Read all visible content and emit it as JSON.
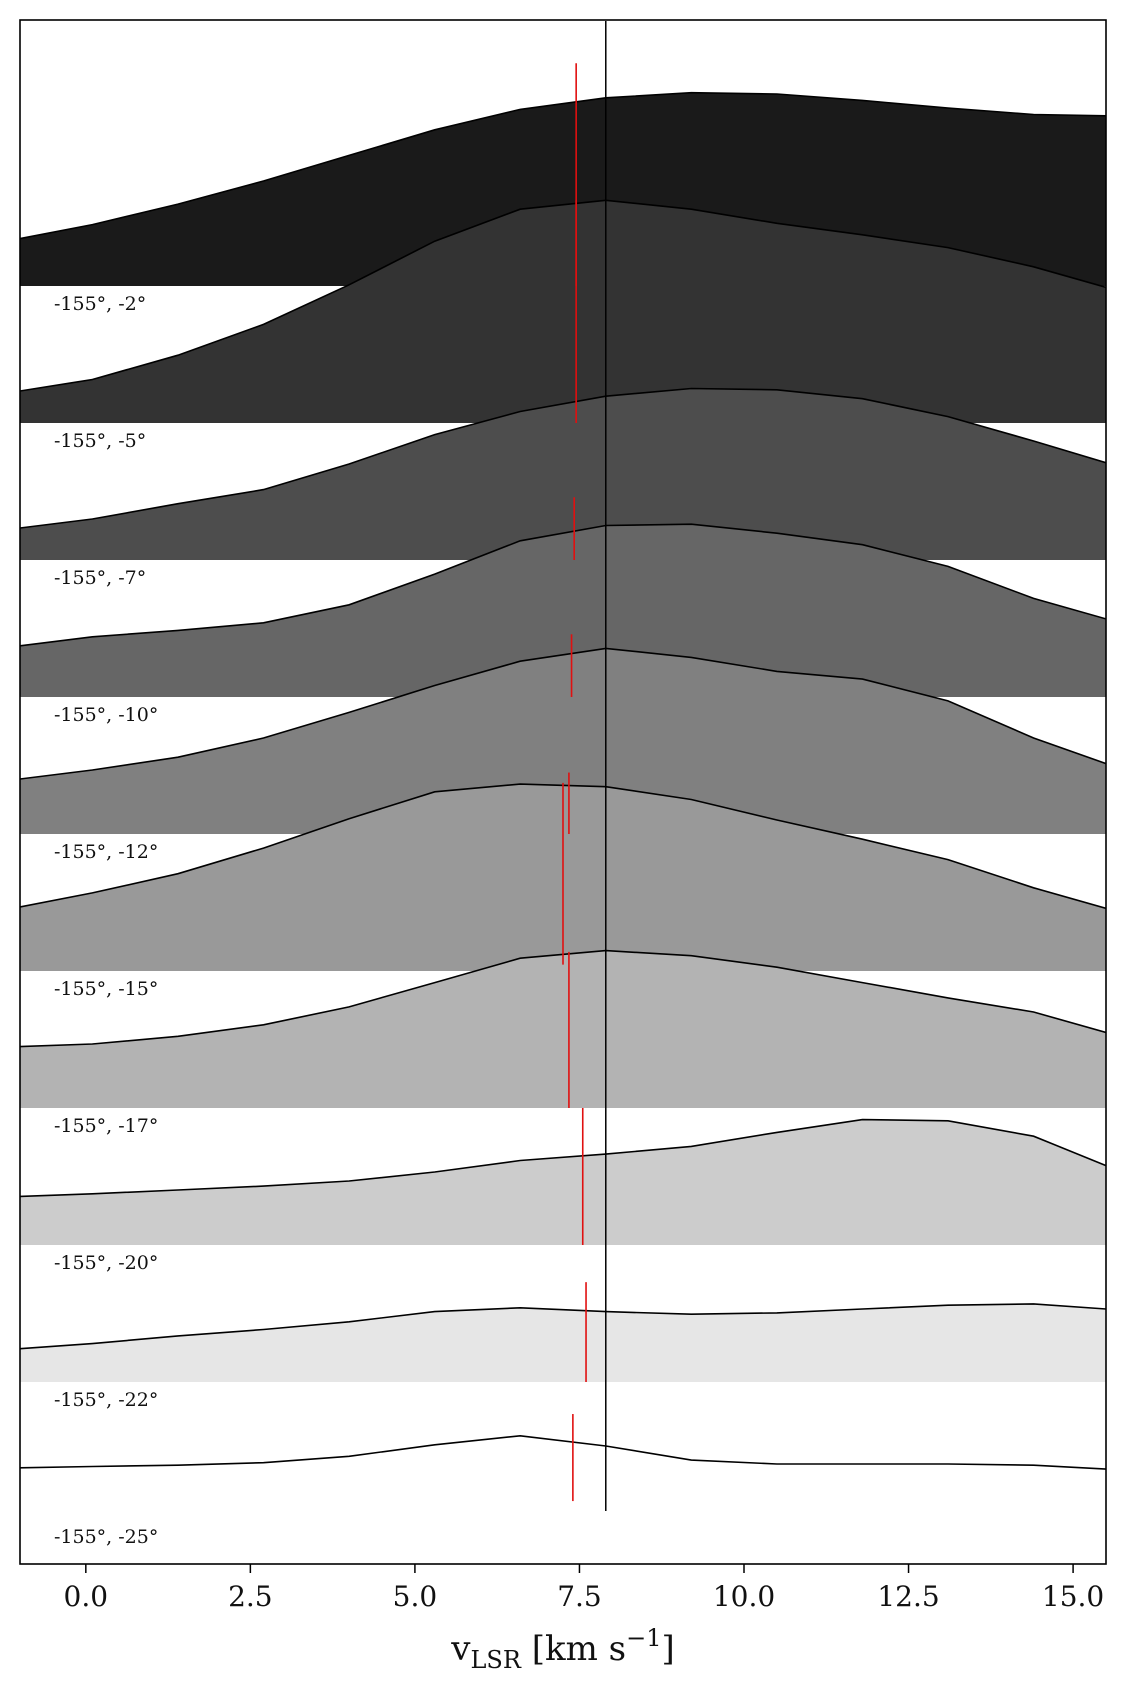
{
  "chart_data": {
    "type": "area",
    "xlabel": "v_LSR [km s^-1]",
    "xlabel_parts": {
      "main": "v",
      "sub": "LSR",
      "rest": " [km s",
      "sup": "−1",
      "end": "]"
    },
    "xlim": [
      -1.0,
      15.5
    ],
    "xticks": [
      0.0,
      2.5,
      5.0,
      7.5,
      10.0,
      12.5,
      15.0
    ],
    "xtick_labels": [
      "0.0",
      "2.5",
      "5.0",
      "7.5",
      "10.0",
      "12.5",
      "15.0"
    ],
    "grid": false,
    "reference_line_x": 7.9,
    "reference_line_color": "#000000",
    "marker_color": "#e01010",
    "x": [
      -1.0,
      0.1,
      1.4,
      2.7,
      4.0,
      5.3,
      6.6,
      7.9,
      9.2,
      10.5,
      11.8,
      13.1,
      14.4,
      15.5
    ],
    "series": [
      {
        "label": "-155°, -2°",
        "fill": "#1a1a1a",
        "values": [
          0.37,
          0.48,
          0.64,
          0.82,
          1.02,
          1.22,
          1.38,
          1.47,
          1.51,
          1.5,
          1.45,
          1.39,
          1.34,
          1.33
        ],
        "marker_x": 7.45,
        "marker_range": [
          0.0,
          1.74
        ]
      },
      {
        "label": "-155°, -5°",
        "fill": "#333333",
        "values": [
          0.25,
          0.34,
          0.53,
          0.77,
          1.08,
          1.42,
          1.67,
          1.74,
          1.67,
          1.56,
          1.47,
          1.37,
          1.22,
          1.06
        ],
        "marker_x": 7.45,
        "marker_range": [
          0.0,
          1.74
        ]
      },
      {
        "label": "-155°, -7°",
        "fill": "#4d4d4d",
        "values": [
          0.25,
          0.32,
          0.44,
          0.55,
          0.75,
          0.98,
          1.16,
          1.28,
          1.34,
          1.33,
          1.26,
          1.12,
          0.93,
          0.76
        ],
        "marker_x": 7.42,
        "marker_range": [
          0.0,
          0.49
        ]
      },
      {
        "label": "-155°, -10°",
        "fill": "#666666",
        "values": [
          0.4,
          0.47,
          0.52,
          0.58,
          0.72,
          0.96,
          1.22,
          1.34,
          1.35,
          1.28,
          1.19,
          1.02,
          0.77,
          0.61
        ],
        "marker_x": 7.38,
        "marker_range": [
          0.0,
          0.49
        ]
      },
      {
        "label": "-155°, -12°",
        "fill": "#808080",
        "values": [
          0.43,
          0.5,
          0.6,
          0.75,
          0.95,
          1.16,
          1.35,
          1.45,
          1.38,
          1.27,
          1.21,
          1.04,
          0.75,
          0.55
        ],
        "marker_x": 7.34,
        "marker_range": [
          0.0,
          0.48
        ]
      },
      {
        "label": "-155°, -15°",
        "fill": "#999999",
        "values": [
          0.5,
          0.61,
          0.76,
          0.96,
          1.19,
          1.4,
          1.46,
          1.44,
          1.34,
          1.18,
          1.03,
          0.87,
          0.65,
          0.49
        ],
        "marker_x": 7.25,
        "marker_range": [
          0.05,
          1.47
        ]
      },
      {
        "label": "-155°, -17°",
        "fill": "#b3b3b3",
        "values": [
          0.48,
          0.5,
          0.56,
          0.65,
          0.79,
          0.98,
          1.17,
          1.23,
          1.19,
          1.1,
          0.98,
          0.86,
          0.75,
          0.59
        ],
        "marker_x": 7.34,
        "marker_range": [
          0.0,
          1.22
        ]
      },
      {
        "label": "-155°, -20°",
        "fill": "#cccccc",
        "values": [
          0.38,
          0.4,
          0.43,
          0.46,
          0.5,
          0.57,
          0.66,
          0.71,
          0.77,
          0.88,
          0.98,
          0.97,
          0.85,
          0.62
        ],
        "marker_x": 7.55,
        "marker_range": [
          0.0,
          1.07
        ]
      },
      {
        "label": "-155°, -22°",
        "fill": "#e6e6e6",
        "values": [
          0.26,
          0.3,
          0.36,
          0.41,
          0.47,
          0.55,
          0.58,
          0.55,
          0.53,
          0.54,
          0.57,
          0.6,
          0.61,
          0.57
        ],
        "marker_x": 7.6,
        "marker_range": [
          0.0,
          0.78
        ]
      },
      {
        "label": "-155°, -25°",
        "fill": "#ffffff",
        "values": [
          0.4,
          0.41,
          0.42,
          0.44,
          0.49,
          0.58,
          0.65,
          0.57,
          0.46,
          0.43,
          0.43,
          0.43,
          0.42,
          0.39
        ],
        "marker_x": 7.4,
        "marker_range": [
          0.14,
          0.82
        ]
      }
    ]
  }
}
